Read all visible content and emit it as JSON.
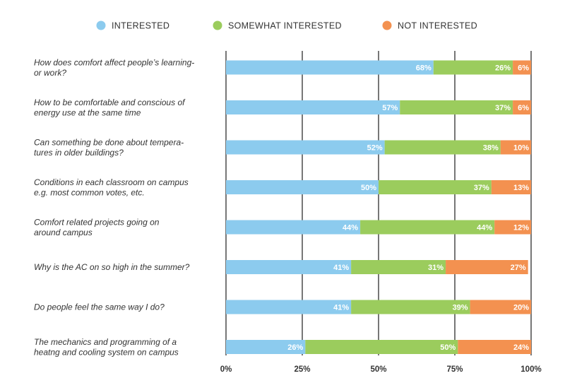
{
  "chart_data": {
    "type": "bar",
    "orientation": "horizontal",
    "stacked": true,
    "categories": [
      [
        "How does comfort affect people’s learning-",
        "or work?"
      ],
      [
        "How to be comfortable and conscious of",
        "energy use at the same time"
      ],
      [
        "Can something be done about tempera-",
        "tures in older buildings?"
      ],
      [
        "Conditions in each classroom on campus",
        "e.g. most common votes, etc."
      ],
      [
        "Comfort related projects going on",
        "around campus"
      ],
      [
        "Why is the AC on so high in the summer?"
      ],
      [
        "Do people feel the same way I do?"
      ],
      [
        "The mechanics and programming of a",
        "heatng and cooling system on campus"
      ]
    ],
    "series": [
      {
        "name": "INTERESTED",
        "color": "#8ccbee",
        "values": [
          68,
          57,
          52,
          50,
          44,
          41,
          41,
          26
        ],
        "labels": [
          "68%",
          "57%",
          "52%",
          "50%",
          "44%",
          "41%",
          "41%",
          "26%"
        ]
      },
      {
        "name": "SOMEWHAT INTERESTED",
        "color": "#9bcc5d",
        "values": [
          26,
          37,
          38,
          37,
          44,
          31,
          39,
          50
        ],
        "labels": [
          "26%",
          "37%",
          "38%",
          "37%",
          "44%",
          "31%",
          "39%",
          "50%"
        ]
      },
      {
        "name": "NOT INTERESTED",
        "color": "#f39150",
        "values": [
          6,
          6,
          10,
          13,
          12,
          27,
          20,
          24
        ],
        "labels": [
          "6%",
          "6%",
          "10%",
          "13%",
          "12%",
          "27%",
          "20%",
          "24%"
        ]
      }
    ],
    "xlim": [
      0,
      100
    ],
    "xticks": [
      0,
      25,
      50,
      75,
      100
    ],
    "xtick_labels": [
      "0%",
      "25%",
      "50%",
      "75%",
      "100%"
    ],
    "grid": true,
    "legend_position": "top"
  }
}
